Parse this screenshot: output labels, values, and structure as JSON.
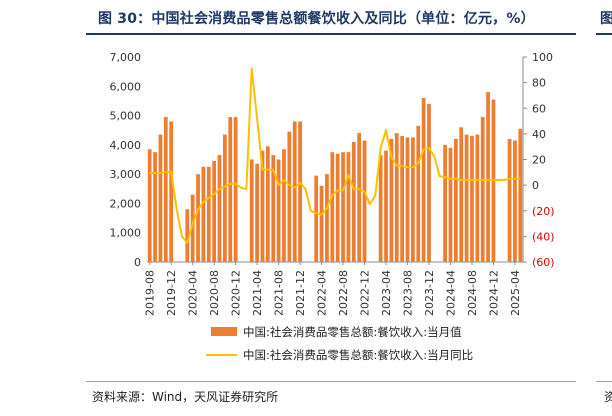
{
  "figure_title": "图 30：中国社会消费品零售总额餐饮收入及同比（单位：亿元，%）",
  "next_figure_stub": "图",
  "source": "资料来源：Wind，天风证券研究所",
  "next_source_stub": "资",
  "colors": {
    "bar": "#ED7D31",
    "line": "#FFC000",
    "title": "#1f3864",
    "negative_tick": "#E00000"
  },
  "chart_data": {
    "type": "bar+line",
    "x": [
      "2019-08",
      "2019-09",
      "2019-10",
      "2019-11",
      "2019-12",
      "2020-01",
      "2020-02",
      "2020-03",
      "2020-04",
      "2020-05",
      "2020-06",
      "2020-07",
      "2020-08",
      "2020-09",
      "2020-10",
      "2020-11",
      "2020-12",
      "2021-01",
      "2021-02",
      "2021-03",
      "2021-04",
      "2021-05",
      "2021-06",
      "2021-07",
      "2021-08",
      "2021-09",
      "2021-10",
      "2021-11",
      "2021-12",
      "2022-01",
      "2022-02",
      "2022-03",
      "2022-04",
      "2022-05",
      "2022-06",
      "2022-07",
      "2022-08",
      "2022-09",
      "2022-10",
      "2022-11",
      "2022-12",
      "2023-01",
      "2023-02",
      "2023-03",
      "2023-04",
      "2023-05",
      "2023-06",
      "2023-07",
      "2023-08",
      "2023-09",
      "2023-10",
      "2023-11",
      "2023-12",
      "2024-01",
      "2024-02",
      "2024-03",
      "2024-04",
      "2024-05",
      "2024-06",
      "2024-07",
      "2024-08",
      "2024-09",
      "2024-10",
      "2024-11",
      "2024-12",
      "2025-01",
      "2025-02",
      "2025-03",
      "2025-04",
      "2025-05"
    ],
    "x_tick_labels": [
      "2019-08",
      "2019-12",
      "2020-04",
      "2020-08",
      "2020-12",
      "2021-04",
      "2021-08",
      "2021-12",
      "2022-04",
      "2022-08",
      "2022-12",
      "2023-04",
      "2023-08",
      "2023-12",
      "2024-04",
      "2024-08",
      "2024-12",
      "2025-04"
    ],
    "series": [
      {
        "name": "中国:社会消费品零售总额:餐饮收入:当月值",
        "type": "bar",
        "axis": "left",
        "values": [
          3850,
          3750,
          4350,
          4950,
          4800,
          null,
          null,
          1800,
          2300,
          3000,
          3250,
          3250,
          3450,
          3650,
          4350,
          4950,
          4950,
          null,
          null,
          3500,
          3350,
          3800,
          3950,
          3650,
          3500,
          3850,
          4450,
          4800,
          4800,
          null,
          null,
          2950,
          2600,
          3000,
          3750,
          3700,
          3750,
          3750,
          4100,
          4400,
          4150,
          null,
          null,
          3650,
          3800,
          4200,
          4400,
          4300,
          4250,
          4250,
          4650,
          5600,
          5400,
          null,
          null,
          4000,
          3900,
          4200,
          4600,
          4350,
          4300,
          4350,
          4950,
          5800,
          5550,
          null,
          null,
          4200,
          4150,
          4550
        ]
      },
      {
        "name": "中国:社会消费品零售总额:餐饮收入:当月同比",
        "type": "line",
        "axis": "right",
        "values": [
          9.5,
          9.5,
          9.5,
          10,
          10.5,
          -18,
          -40,
          -45,
          -30,
          -19,
          -13,
          -10,
          -7,
          -3,
          -1,
          1,
          1,
          -2,
          -3,
          91,
          52,
          12,
          12,
          12,
          0,
          4,
          0,
          -2,
          2,
          -3,
          -20,
          -22,
          -23,
          -18,
          -8,
          -4,
          -4,
          8,
          -3,
          -3,
          -5,
          -15,
          -8,
          29,
          43,
          22,
          15,
          15,
          14,
          14,
          17,
          28,
          29,
          22,
          7,
          6,
          5,
          5,
          4,
          4,
          4,
          4,
          4,
          4,
          4,
          4,
          4,
          5,
          5,
          5
        ]
      }
    ],
    "y_left": {
      "min": 0,
      "max": 7000,
      "ticks": [
        0,
        1000,
        2000,
        3000,
        4000,
        5000,
        6000,
        7000
      ],
      "tick_labels": [
        "0",
        "1,000",
        "2,000",
        "3,000",
        "4,000",
        "5,000",
        "6,000",
        "7,000"
      ]
    },
    "y_right": {
      "min": -60,
      "max": 100,
      "ticks": [
        -60,
        -40,
        -20,
        0,
        20,
        40,
        60,
        80,
        100
      ],
      "tick_labels": [
        "(60)",
        "(40)",
        "(20)",
        "0",
        "20",
        "40",
        "60",
        "80",
        "100"
      ]
    },
    "legend": [
      "中国:社会消费品零售总额:餐饮收入:当月值",
      "中国:社会消费品零售总额:餐饮收入:当月同比"
    ],
    "legend_position": "bottom"
  }
}
